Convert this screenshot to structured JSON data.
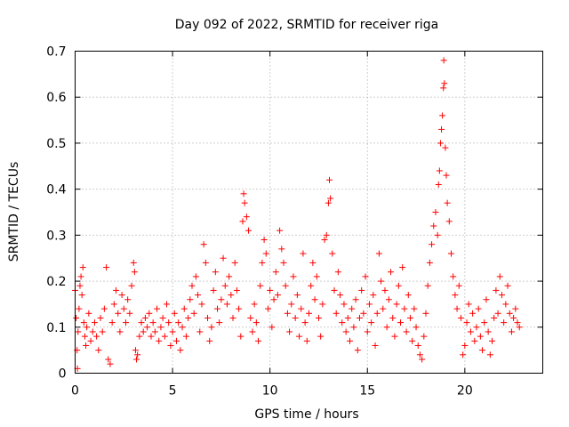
{
  "chart_data": {
    "type": "scatter",
    "title": "Day 092 of 2022, SRMTID for receiver riga",
    "xlabel": "GPS time / hours",
    "ylabel": "SRMTID / TECUs",
    "xlim": [
      0,
      24
    ],
    "ylim": [
      0,
      0.7
    ],
    "xticks": [
      0,
      5,
      10,
      15,
      20
    ],
    "yticks": [
      0,
      0.1,
      0.2,
      0.3,
      0.4,
      0.5,
      0.6,
      0.7
    ],
    "grid": true,
    "marker": "+",
    "color": "#ff0000",
    "series": [
      {
        "name": "SRMTID",
        "points": [
          [
            0.0,
            0.18
          ],
          [
            0.05,
            0.12
          ],
          [
            0.1,
            0.05
          ],
          [
            0.12,
            0.01
          ],
          [
            0.15,
            0.09
          ],
          [
            0.2,
            0.14
          ],
          [
            0.25,
            0.19
          ],
          [
            0.3,
            0.21
          ],
          [
            0.35,
            0.17
          ],
          [
            0.4,
            0.23
          ],
          [
            0.45,
            0.11
          ],
          [
            0.5,
            0.08
          ],
          [
            0.55,
            0.06
          ],
          [
            0.6,
            0.1
          ],
          [
            0.7,
            0.13
          ],
          [
            0.8,
            0.07
          ],
          [
            0.9,
            0.09
          ],
          [
            1.0,
            0.11
          ],
          [
            1.1,
            0.08
          ],
          [
            1.2,
            0.05
          ],
          [
            1.3,
            0.12
          ],
          [
            1.4,
            0.09
          ],
          [
            1.5,
            0.14
          ],
          [
            1.6,
            0.23
          ],
          [
            1.7,
            0.03
          ],
          [
            1.8,
            0.02
          ],
          [
            1.9,
            0.11
          ],
          [
            2.0,
            0.15
          ],
          [
            2.1,
            0.18
          ],
          [
            2.2,
            0.13
          ],
          [
            2.3,
            0.09
          ],
          [
            2.4,
            0.17
          ],
          [
            2.5,
            0.14
          ],
          [
            2.6,
            0.11
          ],
          [
            2.7,
            0.16
          ],
          [
            2.8,
            0.13
          ],
          [
            2.9,
            0.19
          ],
          [
            3.0,
            0.24
          ],
          [
            3.05,
            0.22
          ],
          [
            3.1,
            0.05
          ],
          [
            3.15,
            0.03
          ],
          [
            3.2,
            0.04
          ],
          [
            3.3,
            0.08
          ],
          [
            3.4,
            0.11
          ],
          [
            3.5,
            0.09
          ],
          [
            3.6,
            0.12
          ],
          [
            3.7,
            0.1
          ],
          [
            3.8,
            0.13
          ],
          [
            3.9,
            0.08
          ],
          [
            4.0,
            0.11
          ],
          [
            4.1,
            0.09
          ],
          [
            4.2,
            0.14
          ],
          [
            4.3,
            0.07
          ],
          [
            4.4,
            0.1
          ],
          [
            4.5,
            0.12
          ],
          [
            4.6,
            0.08
          ],
          [
            4.7,
            0.15
          ],
          [
            4.8,
            0.11
          ],
          [
            4.9,
            0.06
          ],
          [
            5.0,
            0.09
          ],
          [
            5.1,
            0.13
          ],
          [
            5.2,
            0.07
          ],
          [
            5.3,
            0.11
          ],
          [
            5.4,
            0.05
          ],
          [
            5.5,
            0.1
          ],
          [
            5.6,
            0.14
          ],
          [
            5.7,
            0.08
          ],
          [
            5.8,
            0.12
          ],
          [
            5.9,
            0.16
          ],
          [
            6.0,
            0.19
          ],
          [
            6.1,
            0.13
          ],
          [
            6.2,
            0.21
          ],
          [
            6.3,
            0.17
          ],
          [
            6.4,
            0.09
          ],
          [
            6.5,
            0.15
          ],
          [
            6.6,
            0.28
          ],
          [
            6.7,
            0.24
          ],
          [
            6.8,
            0.12
          ],
          [
            6.9,
            0.07
          ],
          [
            7.0,
            0.1
          ],
          [
            7.1,
            0.18
          ],
          [
            7.2,
            0.22
          ],
          [
            7.3,
            0.14
          ],
          [
            7.4,
            0.11
          ],
          [
            7.5,
            0.16
          ],
          [
            7.6,
            0.25
          ],
          [
            7.7,
            0.19
          ],
          [
            7.8,
            0.15
          ],
          [
            7.9,
            0.21
          ],
          [
            8.0,
            0.17
          ],
          [
            8.1,
            0.12
          ],
          [
            8.2,
            0.24
          ],
          [
            8.3,
            0.18
          ],
          [
            8.4,
            0.14
          ],
          [
            8.5,
            0.08
          ],
          [
            8.6,
            0.33
          ],
          [
            8.65,
            0.39
          ],
          [
            8.7,
            0.37
          ],
          [
            8.8,
            0.34
          ],
          [
            8.9,
            0.31
          ],
          [
            9.0,
            0.12
          ],
          [
            9.1,
            0.09
          ],
          [
            9.2,
            0.15
          ],
          [
            9.3,
            0.11
          ],
          [
            9.4,
            0.07
          ],
          [
            9.5,
            0.19
          ],
          [
            9.6,
            0.24
          ],
          [
            9.7,
            0.29
          ],
          [
            9.8,
            0.26
          ],
          [
            9.9,
            0.14
          ],
          [
            10.0,
            0.18
          ],
          [
            10.1,
            0.1
          ],
          [
            10.2,
            0.16
          ],
          [
            10.3,
            0.22
          ],
          [
            10.4,
            0.17
          ],
          [
            10.5,
            0.31
          ],
          [
            10.6,
            0.27
          ],
          [
            10.7,
            0.24
          ],
          [
            10.8,
            0.19
          ],
          [
            10.9,
            0.13
          ],
          [
            11.0,
            0.09
          ],
          [
            11.1,
            0.15
          ],
          [
            11.2,
            0.21
          ],
          [
            11.3,
            0.12
          ],
          [
            11.4,
            0.17
          ],
          [
            11.5,
            0.08
          ],
          [
            11.6,
            0.14
          ],
          [
            11.7,
            0.26
          ],
          [
            11.8,
            0.11
          ],
          [
            11.9,
            0.07
          ],
          [
            12.0,
            0.13
          ],
          [
            12.1,
            0.19
          ],
          [
            12.2,
            0.24
          ],
          [
            12.3,
            0.16
          ],
          [
            12.4,
            0.21
          ],
          [
            12.5,
            0.12
          ],
          [
            12.6,
            0.08
          ],
          [
            12.7,
            0.15
          ],
          [
            12.8,
            0.29
          ],
          [
            12.9,
            0.3
          ],
          [
            13.0,
            0.37
          ],
          [
            13.05,
            0.42
          ],
          [
            13.1,
            0.38
          ],
          [
            13.2,
            0.26
          ],
          [
            13.3,
            0.18
          ],
          [
            13.4,
            0.13
          ],
          [
            13.5,
            0.22
          ],
          [
            13.6,
            0.17
          ],
          [
            13.7,
            0.11
          ],
          [
            13.8,
            0.15
          ],
          [
            13.9,
            0.09
          ],
          [
            14.0,
            0.12
          ],
          [
            14.1,
            0.07
          ],
          [
            14.2,
            0.14
          ],
          [
            14.3,
            0.1
          ],
          [
            14.4,
            0.16
          ],
          [
            14.5,
            0.05
          ],
          [
            14.6,
            0.12
          ],
          [
            14.7,
            0.18
          ],
          [
            14.8,
            0.13
          ],
          [
            14.9,
            0.21
          ],
          [
            15.0,
            0.09
          ],
          [
            15.1,
            0.15
          ],
          [
            15.2,
            0.11
          ],
          [
            15.3,
            0.17
          ],
          [
            15.4,
            0.06
          ],
          [
            15.5,
            0.13
          ],
          [
            15.6,
            0.26
          ],
          [
            15.7,
            0.2
          ],
          [
            15.8,
            0.14
          ],
          [
            15.9,
            0.18
          ],
          [
            16.0,
            0.1
          ],
          [
            16.1,
            0.16
          ],
          [
            16.2,
            0.22
          ],
          [
            16.3,
            0.12
          ],
          [
            16.4,
            0.08
          ],
          [
            16.5,
            0.15
          ],
          [
            16.6,
            0.19
          ],
          [
            16.7,
            0.11
          ],
          [
            16.8,
            0.23
          ],
          [
            16.9,
            0.14
          ],
          [
            17.0,
            0.09
          ],
          [
            17.1,
            0.17
          ],
          [
            17.2,
            0.12
          ],
          [
            17.3,
            0.07
          ],
          [
            17.4,
            0.14
          ],
          [
            17.5,
            0.1
          ],
          [
            17.6,
            0.06
          ],
          [
            17.7,
            0.04
          ],
          [
            17.8,
            0.03
          ],
          [
            17.9,
            0.08
          ],
          [
            18.0,
            0.13
          ],
          [
            18.1,
            0.19
          ],
          [
            18.2,
            0.24
          ],
          [
            18.3,
            0.28
          ],
          [
            18.4,
            0.32
          ],
          [
            18.5,
            0.35
          ],
          [
            18.6,
            0.3
          ],
          [
            18.65,
            0.41
          ],
          [
            18.7,
            0.44
          ],
          [
            18.75,
            0.5
          ],
          [
            18.8,
            0.53
          ],
          [
            18.85,
            0.56
          ],
          [
            18.9,
            0.62
          ],
          [
            18.92,
            0.68
          ],
          [
            18.95,
            0.63
          ],
          [
            19.0,
            0.49
          ],
          [
            19.05,
            0.43
          ],
          [
            19.1,
            0.37
          ],
          [
            19.2,
            0.33
          ],
          [
            19.3,
            0.26
          ],
          [
            19.4,
            0.21
          ],
          [
            19.5,
            0.17
          ],
          [
            19.6,
            0.14
          ],
          [
            19.7,
            0.19
          ],
          [
            19.8,
            0.12
          ],
          [
            19.9,
            0.04
          ],
          [
            20.0,
            0.06
          ],
          [
            20.1,
            0.11
          ],
          [
            20.2,
            0.15
          ],
          [
            20.3,
            0.09
          ],
          [
            20.4,
            0.13
          ],
          [
            20.5,
            0.07
          ],
          [
            20.6,
            0.1
          ],
          [
            20.7,
            0.14
          ],
          [
            20.8,
            0.08
          ],
          [
            20.9,
            0.05
          ],
          [
            21.0,
            0.11
          ],
          [
            21.1,
            0.16
          ],
          [
            21.2,
            0.09
          ],
          [
            21.3,
            0.04
          ],
          [
            21.4,
            0.07
          ],
          [
            21.5,
            0.12
          ],
          [
            21.6,
            0.18
          ],
          [
            21.7,
            0.13
          ],
          [
            21.8,
            0.21
          ],
          [
            21.9,
            0.17
          ],
          [
            22.0,
            0.11
          ],
          [
            22.1,
            0.15
          ],
          [
            22.2,
            0.19
          ],
          [
            22.3,
            0.13
          ],
          [
            22.4,
            0.09
          ],
          [
            22.5,
            0.12
          ],
          [
            22.6,
            0.14
          ],
          [
            22.7,
            0.11
          ],
          [
            22.8,
            0.1
          ]
        ]
      }
    ]
  }
}
